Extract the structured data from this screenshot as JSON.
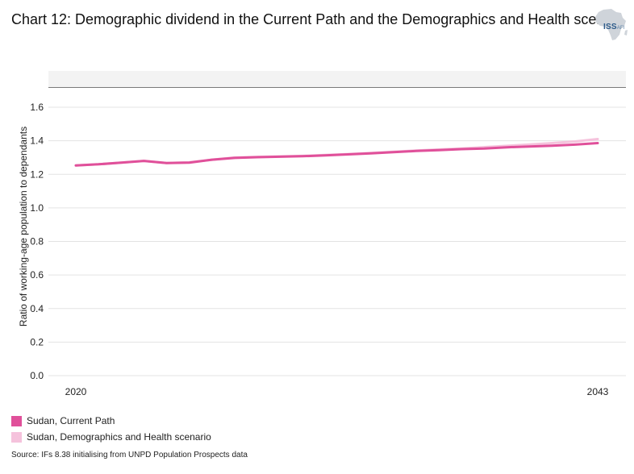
{
  "title": "Chart 12: Demographic dividend in the Current Path and the Demographics and Health scen..",
  "logo": {
    "text": "ISS",
    "sub": "AFI"
  },
  "source": "Source: IFs 8.38 initialising from UNPD Population Prospects data",
  "chart_data": {
    "type": "line",
    "title": "Chart 12: Demographic dividend in the Current Path and the Demographics and Health scen..",
    "ylabel": "Ratio of working-age population to dependants",
    "xlabel": "",
    "ylim": [
      0,
      1.6
    ],
    "xlim": [
      2019,
      2044
    ],
    "yticks": [
      "0.0",
      "0.2",
      "0.4",
      "0.6",
      "0.8",
      "1.0",
      "1.2",
      "1.4",
      "1.6"
    ],
    "xticks": [
      "2020",
      "2043"
    ],
    "grid": true,
    "legend_position": "bottom-left",
    "x": [
      2020,
      2021,
      2022,
      2023,
      2024,
      2025,
      2026,
      2027,
      2028,
      2029,
      2030,
      2031,
      2032,
      2033,
      2034,
      2035,
      2036,
      2037,
      2038,
      2039,
      2040,
      2041,
      2042,
      2043
    ],
    "series": [
      {
        "name": "Sudan, Demographics and Health scenario",
        "color": "#f5c2dc",
        "values": [
          1.253,
          1.26,
          1.27,
          1.28,
          1.267,
          1.272,
          1.287,
          1.3,
          1.304,
          1.307,
          1.31,
          1.315,
          1.321,
          1.327,
          1.335,
          1.342,
          1.348,
          1.354,
          1.362,
          1.37,
          1.378,
          1.386,
          1.396,
          1.41
        ]
      },
      {
        "name": "Sudan, Current Path",
        "color": "#e0509a",
        "values": [
          1.253,
          1.26,
          1.27,
          1.28,
          1.267,
          1.27,
          1.287,
          1.298,
          1.302,
          1.305,
          1.308,
          1.313,
          1.319,
          1.325,
          1.332,
          1.339,
          1.344,
          1.35,
          1.354,
          1.361,
          1.366,
          1.371,
          1.377,
          1.386
        ]
      }
    ]
  },
  "legend": [
    {
      "label": "Sudan, Current Path",
      "color": "#e0509a"
    },
    {
      "label": "Sudan, Demographics and Health scenario",
      "color": "#f5c2dc"
    }
  ]
}
